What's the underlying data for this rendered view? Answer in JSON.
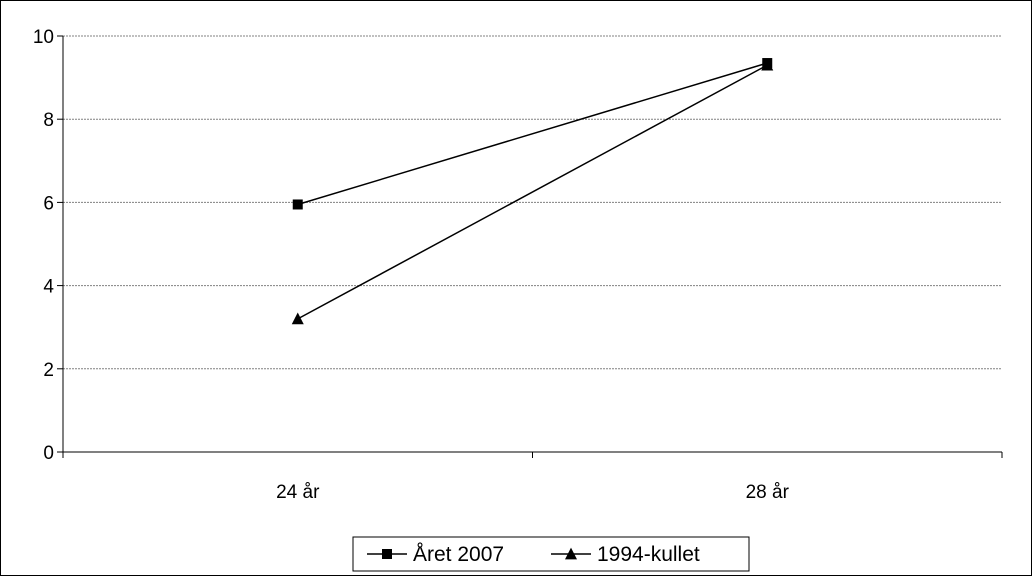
{
  "chart_data": {
    "type": "line",
    "title": "",
    "xlabel": "",
    "ylabel": "",
    "categories": [
      "24 år",
      "28 år"
    ],
    "ylim": [
      0,
      10
    ],
    "yticks": [
      "0",
      "2",
      "4",
      "6",
      "8",
      "10"
    ],
    "grid": true,
    "legend_position": "bottom",
    "series": [
      {
        "name": "Året 2007",
        "marker": "square",
        "values": [
          5.95,
          9.35
        ]
      },
      {
        "name": "1994-kullet",
        "marker": "triangle",
        "values": [
          3.2,
          9.3
        ]
      }
    ],
    "colors": {
      "line": "#000000",
      "grid": "#808080",
      "background": "#ffffff"
    }
  }
}
